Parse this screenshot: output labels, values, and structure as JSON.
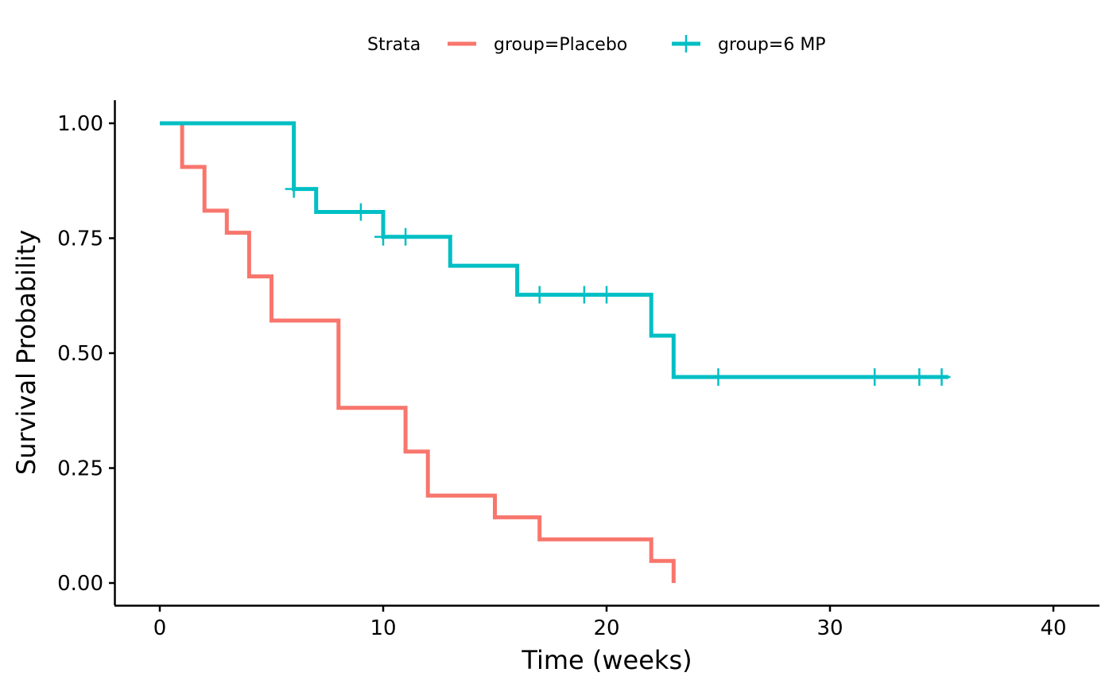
{
  "chart_data": {
    "type": "line",
    "subtype": "kaplan-meier-step",
    "xlabel": "Time (weeks)",
    "ylabel": "Survival Probability",
    "xlim": [
      -2,
      42
    ],
    "ylim": [
      -0.05,
      1.05
    ],
    "x_ticks": [
      0,
      10,
      20,
      30,
      40
    ],
    "x_tick_labels": [
      "0",
      "10",
      "20",
      "30",
      "40"
    ],
    "y_ticks": [
      0,
      0.25,
      0.5,
      0.75,
      1.0
    ],
    "y_tick_labels": [
      "0.00",
      "0.25",
      "0.50",
      "0.75",
      "1.00"
    ],
    "grid": false,
    "legend": {
      "title": "Strata",
      "position": "top",
      "entries": [
        "group=Placebo",
        "group=6 MP"
      ]
    },
    "series": [
      {
        "name": "group=Placebo",
        "color": "#F8766D",
        "steps": [
          [
            0,
            1.0
          ],
          [
            1,
            0.905
          ],
          [
            2,
            0.81
          ],
          [
            3,
            0.762
          ],
          [
            4,
            0.667
          ],
          [
            5,
            0.571
          ],
          [
            8,
            0.381
          ],
          [
            11,
            0.286
          ],
          [
            12,
            0.19
          ],
          [
            15,
            0.143
          ],
          [
            17,
            0.095
          ],
          [
            22,
            0.048
          ],
          [
            23,
            0.0
          ]
        ],
        "end_x": 23,
        "censored": []
      },
      {
        "name": "group=6 MP",
        "color": "#00BFC4",
        "steps": [
          [
            0,
            1.0
          ],
          [
            6,
            0.857
          ],
          [
            7,
            0.807
          ],
          [
            10,
            0.753
          ],
          [
            13,
            0.69
          ],
          [
            16,
            0.627
          ],
          [
            22,
            0.538
          ],
          [
            23,
            0.448
          ]
        ],
        "end_x": 35.3,
        "censored": [
          6,
          9,
          10,
          11,
          17,
          19,
          20,
          25,
          32,
          34,
          35
        ]
      }
    ]
  }
}
